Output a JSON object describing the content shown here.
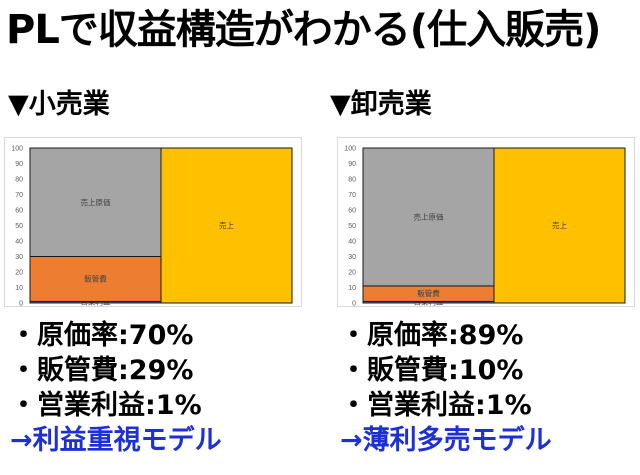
{
  "title": "PLで収益構造がわかる(仕入販売)",
  "colors": {
    "sales": "#ffc000",
    "cogs": "#a5a5a5",
    "sga": "#ed7d31",
    "profit": "#4472c4",
    "model_text": "#1f2fd6"
  },
  "sections": [
    {
      "heading": "▼小売業",
      "stats": [
        "・原価率:70%",
        "・販管費:29%",
        "・営業利益:1%"
      ],
      "model": "→利益重視モデル"
    },
    {
      "heading": "▼卸売業",
      "stats": [
        "・原価率:89%",
        "・販管費:10%",
        "・営業利益:1%"
      ],
      "model": "→薄利多売モデル"
    }
  ],
  "chart_data": [
    {
      "type": "bar",
      "stacked": true,
      "ylim": [
        0,
        100
      ],
      "yticks": [
        0,
        10,
        20,
        30,
        40,
        50,
        60,
        70,
        80,
        90,
        100
      ],
      "left_stack": [
        {
          "name": "営業利益",
          "value": 1,
          "color": "#4472c4"
        },
        {
          "name": "販管費",
          "value": 29,
          "color": "#ed7d31"
        },
        {
          "name": "売上原価",
          "value": 70,
          "color": "#a5a5a5"
        }
      ],
      "right_stack": [
        {
          "name": "売上",
          "value": 100,
          "color": "#ffc000"
        }
      ]
    },
    {
      "type": "bar",
      "stacked": true,
      "ylim": [
        0,
        100
      ],
      "yticks": [
        0,
        10,
        20,
        30,
        40,
        50,
        60,
        70,
        80,
        90,
        100
      ],
      "left_stack": [
        {
          "name": "営業利益",
          "value": 1,
          "color": "#4472c4"
        },
        {
          "name": "販管費",
          "value": 10,
          "color": "#ed7d31"
        },
        {
          "name": "売上原価",
          "value": 89,
          "color": "#a5a5a5"
        }
      ],
      "right_stack": [
        {
          "name": "売上",
          "value": 100,
          "color": "#ffc000"
        }
      ]
    }
  ]
}
